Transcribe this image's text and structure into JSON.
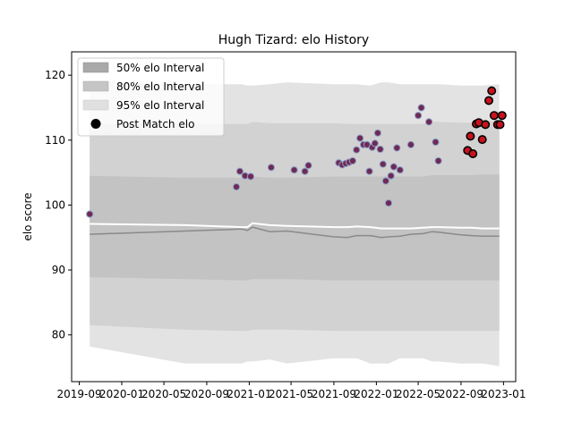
{
  "chart_data": {
    "type": "area",
    "title": "Hugh Tizard: elo History",
    "xlabel": "",
    "ylabel": "elo score",
    "xlim": [
      "2019-08-10",
      "2023-02-05"
    ],
    "ylim": [
      72.8,
      123.6
    ],
    "xticks": [
      "2019-09",
      "2020-01",
      "2020-05",
      "2020-09",
      "2021-01",
      "2021-05",
      "2021-09",
      "2022-01",
      "2022-05",
      "2022-09",
      "2023-01"
    ],
    "yticks": [
      80,
      90,
      100,
      110,
      120
    ],
    "grid": false,
    "legend": {
      "placement": "top-left",
      "entries": [
        "50% elo Interval",
        "80% elo Interval",
        "95% elo Interval",
        "Post Match elo"
      ]
    },
    "colors": {
      "band95": "#e3e3e3",
      "band80": "#d2d2d2",
      "band50": "#c3c3c3",
      "median_line": "#8a8a8a",
      "mean_line": "#ffffff",
      "marker_old": "#6e2a55",
      "marker_recent": "#c8121e",
      "marker_edge": "#8da0c8",
      "marker_edge_recent": "#000000"
    },
    "bands": {
      "x": [
        "2019-10-01",
        "2020-07-01",
        "2020-12-10",
        "2020-12-27",
        "2021-01-10",
        "2021-03-01",
        "2021-04-20",
        "2021-09-01",
        "2021-10-10",
        "2021-11-05",
        "2021-12-15",
        "2022-01-15",
        "2022-02-05",
        "2022-03-10",
        "2022-04-10",
        "2022-05-15",
        "2022-06-10",
        "2022-07-01",
        "2022-09-01",
        "2022-10-01",
        "2022-11-01",
        "2022-12-20"
      ],
      "median": [
        95.5,
        96.0,
        96.3,
        96.1,
        96.6,
        95.9,
        96.0,
        95.1,
        95.0,
        95.3,
        95.3,
        95.0,
        95.1,
        95.2,
        95.5,
        95.6,
        95.9,
        95.8,
        95.4,
        95.3,
        95.2,
        95.2
      ],
      "mean": [
        97.1,
        96.9,
        96.6,
        96.6,
        97.2,
        96.9,
        96.8,
        96.6,
        96.6,
        96.7,
        96.6,
        96.4,
        96.4,
        96.4,
        96.4,
        96.5,
        96.6,
        96.6,
        96.5,
        96.5,
        96.4,
        96.4
      ],
      "p25": [
        88.9,
        88.6,
        88.4,
        88.4,
        88.6,
        88.6,
        88.6,
        88.4,
        88.4,
        88.4,
        88.4,
        88.4,
        88.4,
        88.4,
        88.4,
        88.4,
        88.4,
        88.4,
        88.4,
        88.4,
        88.4,
        88.4
      ],
      "p75": [
        104.5,
        104.2,
        104.2,
        104.2,
        104.4,
        104.2,
        104.2,
        104.4,
        104.4,
        104.4,
        104.4,
        104.4,
        104.4,
        104.4,
        104.4,
        104.4,
        104.6,
        104.6,
        104.6,
        104.6,
        104.7,
        104.7
      ],
      "p10": [
        81.5,
        80.8,
        80.6,
        80.6,
        80.8,
        80.8,
        80.8,
        80.6,
        80.6,
        80.6,
        80.6,
        80.6,
        80.6,
        80.6,
        80.6,
        80.6,
        80.6,
        80.6,
        80.6,
        80.6,
        80.6,
        80.6
      ],
      "p90": [
        112.5,
        112.5,
        112.5,
        112.5,
        112.8,
        112.6,
        112.6,
        112.6,
        112.5,
        112.5,
        112.5,
        112.5,
        112.5,
        112.5,
        112.5,
        112.5,
        112.8,
        112.8,
        112.7,
        112.7,
        112.9,
        112.9
      ],
      "p025": [
        78.2,
        75.6,
        75.6,
        75.9,
        75.9,
        76.2,
        75.6,
        76.4,
        76.4,
        76.4,
        75.6,
        75.6,
        75.6,
        76.4,
        76.4,
        76.4,
        75.9,
        75.9,
        75.6,
        75.6,
        75.6,
        75.2
      ],
      "p975": [
        119.1,
        118.6,
        118.6,
        118.4,
        118.4,
        118.6,
        118.9,
        118.6,
        118.6,
        118.6,
        118.4,
        118.9,
        118.9,
        118.6,
        118.6,
        118.6,
        118.6,
        118.6,
        118.4,
        118.4,
        118.4,
        118.6
      ]
    },
    "post_match": {
      "x": [
        "2019-10-01",
        "2020-11-25",
        "2020-12-05",
        "2020-12-20",
        "2021-01-05",
        "2021-03-05",
        "2021-05-10",
        "2021-06-10",
        "2021-06-20",
        "2021-09-15",
        "2021-09-25",
        "2021-10-05",
        "2021-10-15",
        "2021-10-25",
        "2021-11-05",
        "2021-11-15",
        "2021-11-25",
        "2021-12-05",
        "2021-12-12",
        "2021-12-20",
        "2021-12-28",
        "2022-01-05",
        "2022-01-12",
        "2022-01-20",
        "2022-01-28",
        "2022-02-05",
        "2022-02-12",
        "2022-02-20",
        "2022-03-01",
        "2022-03-10",
        "2022-04-10",
        "2022-05-01",
        "2022-05-10",
        "2022-06-01",
        "2022-06-20",
        "2022-06-28",
        "2022-09-20",
        "2022-09-28",
        "2022-10-05",
        "2022-10-15",
        "2022-10-22",
        "2022-11-01",
        "2022-11-10",
        "2022-11-20",
        "2022-11-28",
        "2022-12-05",
        "2022-12-15",
        "2022-12-22",
        "2022-12-28"
      ],
      "y": [
        98.6,
        102.8,
        105.2,
        104.5,
        104.4,
        105.8,
        105.4,
        105.2,
        106.1,
        106.5,
        106.2,
        106.4,
        106.6,
        106.8,
        108.5,
        110.3,
        109.3,
        109.3,
        105.2,
        108.9,
        109.5,
        111.1,
        108.6,
        106.3,
        103.7,
        100.3,
        104.5,
        105.9,
        108.8,
        105.4,
        109.3,
        113.8,
        115.0,
        112.8,
        109.7,
        106.8,
        108.4,
        110.6,
        107.9,
        112.5,
        112.7,
        110.1,
        112.4,
        116.1,
        117.6,
        113.8,
        112.4,
        112.4,
        113.8
      ],
      "recent_from_index": 36
    }
  }
}
